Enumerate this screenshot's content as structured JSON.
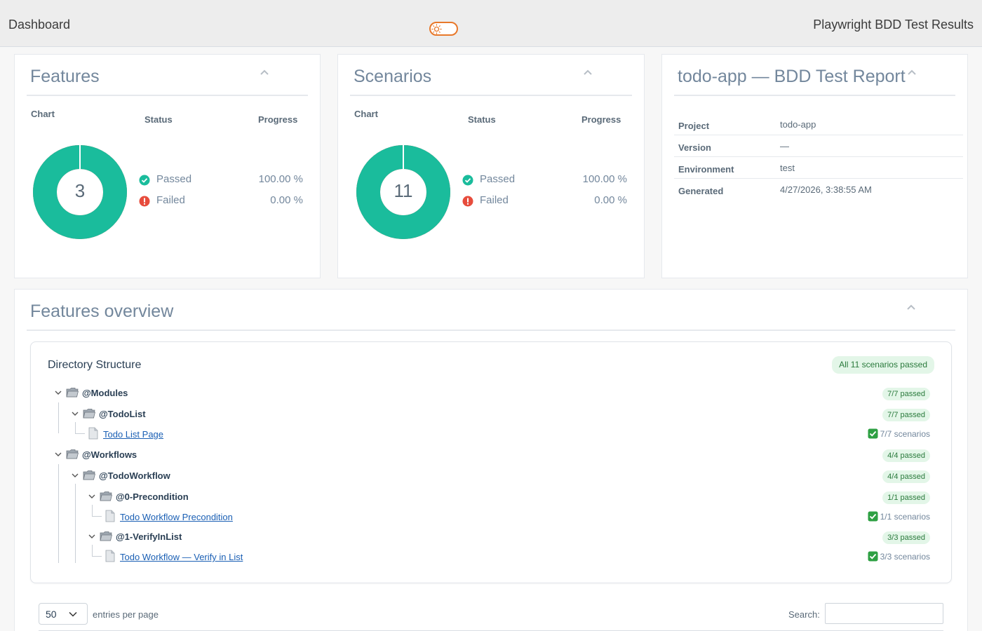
{
  "topbar": {
    "brand": "Dashboard",
    "title": "Playwright BDD Test Results",
    "theme_toggle_icon": "sun-icon"
  },
  "features_panel": {
    "title": "Features",
    "col_chart": "Chart",
    "col_status": "Status",
    "col_progress": "Progress",
    "total": "3",
    "passed_label": "Passed",
    "failed_label": "Failed",
    "passed_pct": "100.00 %",
    "failed_pct": "0.00 %",
    "passed_fraction": 1.0
  },
  "scenarios_panel": {
    "title": "Scenarios",
    "col_chart": "Chart",
    "col_status": "Status",
    "col_progress": "Progress",
    "total": "11",
    "passed_label": "Passed",
    "failed_label": "Failed",
    "passed_pct": "100.00 %",
    "failed_pct": "0.00 %",
    "passed_fraction": 1.0
  },
  "report_panel": {
    "title": "todo-app — BDD Test Report",
    "rows": [
      {
        "key": "Project",
        "value": "todo-app"
      },
      {
        "key": "Version",
        "value": "—"
      },
      {
        "key": "Environment",
        "value": "test"
      },
      {
        "key": "Generated",
        "value": "4/27/2026, 3:38:55 AM"
      }
    ]
  },
  "overview": {
    "title": "Features overview",
    "directory_title": "Directory Structure",
    "all_badge": "All 11 scenarios passed",
    "tree": [
      {
        "type": "folder",
        "name": "@Modules",
        "badge": "7/7 passed"
      },
      {
        "type": "folder",
        "name": "@TodoList",
        "badge": "7/7 passed"
      },
      {
        "type": "file",
        "name": "Todo List Page",
        "scenarios": "7/7 scenarios"
      },
      {
        "type": "folder",
        "name": "@Workflows",
        "badge": "4/4 passed"
      },
      {
        "type": "folder",
        "name": "@TodoWorkflow",
        "badge": "4/4 passed"
      },
      {
        "type": "folder",
        "name": "@0-Precondition",
        "badge": "1/1 passed"
      },
      {
        "type": "file",
        "name": "Todo Workflow Precondition",
        "scenarios": "1/1 scenarios"
      },
      {
        "type": "folder",
        "name": "@1-VerifyInList",
        "badge": "3/3 passed"
      },
      {
        "type": "file",
        "name": "Todo Workflow — Verify in List",
        "scenarios": "3/3 scenarios"
      }
    ],
    "entries_value": "50",
    "entries_label": "entries per page",
    "search_label": "Search:",
    "search_value": ""
  },
  "colors": {
    "passed": "#1abc9c",
    "failed": "#e74c3c",
    "accent": "#e8782a",
    "badge_bg": "#e3f6e8",
    "badge_text": "#2a7a3c"
  }
}
